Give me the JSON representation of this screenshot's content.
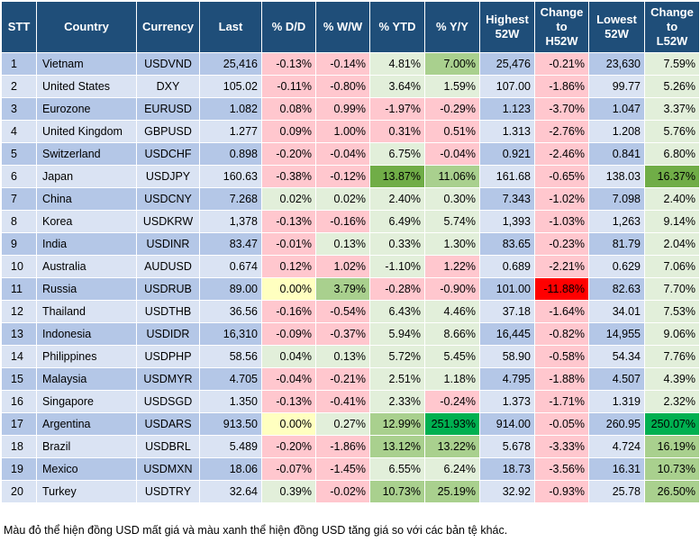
{
  "headers": {
    "stt": "STT",
    "country": "Country",
    "currency": "Currency",
    "last": "Last",
    "dd": "% D/D",
    "ww": "% W/W",
    "ytd": "% YTD",
    "yy": "% Y/Y",
    "high1": "Highest",
    "high2": "52W",
    "chh1": "Change",
    "chh2": "to",
    "chh3": "H52W",
    "low1": "Lowest",
    "low2": "52W",
    "chl1": "Change",
    "chl2": "to",
    "chl3": "L52W"
  },
  "rows": [
    {
      "stt": "1",
      "country": "Vietnam",
      "currency": "USDVND",
      "last": "25,416",
      "dd": "-0.13%",
      "ww": "-0.14%",
      "ytd": "4.81%",
      "yy": "7.00%",
      "high": "25,476",
      "chh": "-0.21%",
      "low": "23,630",
      "chl": "7.59%",
      "s": {
        "dd": "neg1",
        "ww": "neg1",
        "ytd": "pos1",
        "yy": "pos2",
        "chh": "neg1",
        "chl": "pos1"
      }
    },
    {
      "stt": "2",
      "country": "United States",
      "currency": "DXY",
      "last": "105.02",
      "dd": "-0.11%",
      "ww": "-0.80%",
      "ytd": "3.64%",
      "yy": "1.59%",
      "high": "107.00",
      "chh": "-1.86%",
      "low": "99.77",
      "chl": "5.26%",
      "s": {
        "dd": "neg1",
        "ww": "neg1",
        "ytd": "pos1",
        "yy": "pos1",
        "chh": "neg1",
        "chl": "pos1"
      }
    },
    {
      "stt": "3",
      "country": "Eurozone",
      "currency": "EURUSD",
      "last": "1.082",
      "dd": "0.08%",
      "ww": "0.99%",
      "ytd": "-1.97%",
      "yy": "-0.29%",
      "high": "1.123",
      "chh": "-3.70%",
      "low": "1.047",
      "chl": "3.37%",
      "s": {
        "dd": "neg1",
        "ww": "neg1",
        "ytd": "neg1",
        "yy": "neg1",
        "chh": "neg1",
        "chl": "pos1"
      }
    },
    {
      "stt": "4",
      "country": "United Kingdom",
      "currency": "GBPUSD",
      "last": "1.277",
      "dd": "0.09%",
      "ww": "1.00%",
      "ytd": "0.31%",
      "yy": "0.51%",
      "high": "1.313",
      "chh": "-2.76%",
      "low": "1.208",
      "chl": "5.76%",
      "s": {
        "dd": "neg1",
        "ww": "neg1",
        "ytd": "neg1",
        "yy": "neg1",
        "chh": "neg1",
        "chl": "pos1"
      }
    },
    {
      "stt": "5",
      "country": "Switzerland",
      "currency": "USDCHF",
      "last": "0.898",
      "dd": "-0.20%",
      "ww": "-0.04%",
      "ytd": "6.75%",
      "yy": "-0.04%",
      "high": "0.921",
      "chh": "-2.46%",
      "low": "0.841",
      "chl": "6.80%",
      "s": {
        "dd": "neg1",
        "ww": "neg1",
        "ytd": "pos1",
        "yy": "neg1",
        "chh": "neg1",
        "chl": "pos1"
      }
    },
    {
      "stt": "6",
      "country": "Japan",
      "currency": "USDJPY",
      "last": "160.63",
      "dd": "-0.38%",
      "ww": "-0.12%",
      "ytd": "13.87%",
      "yy": "11.06%",
      "high": "161.68",
      "chh": "-0.65%",
      "low": "138.03",
      "chl": "16.37%",
      "s": {
        "dd": "neg1",
        "ww": "neg1",
        "ytd": "pos3",
        "yy": "pos2",
        "chh": "neg1",
        "chl": "pos3"
      }
    },
    {
      "stt": "7",
      "country": "China",
      "currency": "USDCNY",
      "last": "7.268",
      "dd": "0.02%",
      "ww": "0.02%",
      "ytd": "2.40%",
      "yy": "0.30%",
      "high": "7.343",
      "chh": "-1.02%",
      "low": "7.098",
      "chl": "2.40%",
      "s": {
        "dd": "pos1",
        "ww": "pos1",
        "ytd": "pos1",
        "yy": "pos1",
        "chh": "neg1",
        "chl": "pos1"
      }
    },
    {
      "stt": "8",
      "country": "Korea",
      "currency": "USDKRW",
      "last": "1,378",
      "dd": "-0.13%",
      "ww": "-0.16%",
      "ytd": "6.49%",
      "yy": "5.74%",
      "high": "1,393",
      "chh": "-1.03%",
      "low": "1,263",
      "chl": "9.14%",
      "s": {
        "dd": "neg1",
        "ww": "neg1",
        "ytd": "pos1",
        "yy": "pos1",
        "chh": "neg1",
        "chl": "pos1"
      }
    },
    {
      "stt": "9",
      "country": "India",
      "currency": "USDINR",
      "last": "83.47",
      "dd": "-0.01%",
      "ww": "0.13%",
      "ytd": "0.33%",
      "yy": "1.30%",
      "high": "83.65",
      "chh": "-0.23%",
      "low": "81.79",
      "chl": "2.04%",
      "s": {
        "dd": "neg1",
        "ww": "pos1",
        "ytd": "pos1",
        "yy": "pos1",
        "chh": "neg1",
        "chl": "pos1"
      }
    },
    {
      "stt": "10",
      "country": "Australia",
      "currency": "AUDUSD",
      "last": "0.674",
      "dd": "0.12%",
      "ww": "1.02%",
      "ytd": "-1.10%",
      "yy": "1.22%",
      "high": "0.689",
      "chh": "-2.21%",
      "low": "0.629",
      "chl": "7.06%",
      "s": {
        "dd": "neg1",
        "ww": "neg1",
        "ytd": "pos1",
        "yy": "neg1",
        "chh": "neg1",
        "chl": "pos1"
      }
    },
    {
      "stt": "11",
      "country": "Russia",
      "currency": "USDRUB",
      "last": "89.00",
      "dd": "0.00%",
      "ww": "3.79%",
      "ytd": "-0.28%",
      "yy": "-0.90%",
      "high": "101.00",
      "chh": "-11.88%",
      "low": "82.63",
      "chl": "7.70%",
      "s": {
        "dd": "pos5",
        "ww": "pos2",
        "ytd": "neg1",
        "yy": "neg1",
        "chh": "neg3",
        "chl": "pos1"
      }
    },
    {
      "stt": "12",
      "country": "Thailand",
      "currency": "USDTHB",
      "last": "36.56",
      "dd": "-0.16%",
      "ww": "-0.54%",
      "ytd": "6.43%",
      "yy": "4.46%",
      "high": "37.18",
      "chh": "-1.64%",
      "low": "34.01",
      "chl": "7.53%",
      "s": {
        "dd": "neg1",
        "ww": "neg1",
        "ytd": "pos1",
        "yy": "pos1",
        "chh": "neg1",
        "chl": "pos1"
      }
    },
    {
      "stt": "13",
      "country": "Indonesia",
      "currency": "USDIDR",
      "last": "16,310",
      "dd": "-0.09%",
      "ww": "-0.37%",
      "ytd": "5.94%",
      "yy": "8.66%",
      "high": "16,445",
      "chh": "-0.82%",
      "low": "14,955",
      "chl": "9.06%",
      "s": {
        "dd": "neg1",
        "ww": "neg1",
        "ytd": "pos1",
        "yy": "pos1",
        "chh": "neg1",
        "chl": "pos1"
      }
    },
    {
      "stt": "14",
      "country": "Philippines",
      "currency": "USDPHP",
      "last": "58.56",
      "dd": "0.04%",
      "ww": "0.13%",
      "ytd": "5.72%",
      "yy": "5.45%",
      "high": "58.90",
      "chh": "-0.58%",
      "low": "54.34",
      "chl": "7.76%",
      "s": {
        "dd": "pos1",
        "ww": "pos1",
        "ytd": "pos1",
        "yy": "pos1",
        "chh": "neg1",
        "chl": "pos1"
      }
    },
    {
      "stt": "15",
      "country": "Malaysia",
      "currency": "USDMYR",
      "last": "4.705",
      "dd": "-0.04%",
      "ww": "-0.21%",
      "ytd": "2.51%",
      "yy": "1.18%",
      "high": "4.795",
      "chh": "-1.88%",
      "low": "4.507",
      "chl": "4.39%",
      "s": {
        "dd": "neg1",
        "ww": "neg1",
        "ytd": "pos1",
        "yy": "pos1",
        "chh": "neg1",
        "chl": "pos1"
      }
    },
    {
      "stt": "16",
      "country": "Singapore",
      "currency": "USDSGD",
      "last": "1.350",
      "dd": "-0.13%",
      "ww": "-0.41%",
      "ytd": "2.33%",
      "yy": "-0.24%",
      "high": "1.373",
      "chh": "-1.71%",
      "low": "1.319",
      "chl": "2.32%",
      "s": {
        "dd": "neg1",
        "ww": "neg1",
        "ytd": "pos1",
        "yy": "neg1",
        "chh": "neg1",
        "chl": "pos1"
      }
    },
    {
      "stt": "17",
      "country": "Argentina",
      "currency": "USDARS",
      "last": "913.50",
      "dd": "0.00%",
      "ww": "0.27%",
      "ytd": "12.99%",
      "yy": "251.93%",
      "high": "914.00",
      "chh": "-0.05%",
      "low": "260.95",
      "chl": "250.07%",
      "s": {
        "dd": "pos5",
        "ww": "pos1",
        "ytd": "pos2",
        "yy": "pos4",
        "chh": "neg1",
        "chl": "pos4"
      }
    },
    {
      "stt": "18",
      "country": "Brazil",
      "currency": "USDBRL",
      "last": "5.489",
      "dd": "-0.20%",
      "ww": "-1.86%",
      "ytd": "13.12%",
      "yy": "13.22%",
      "high": "5.678",
      "chh": "-3.33%",
      "low": "4.724",
      "chl": "16.19%",
      "s": {
        "dd": "neg1",
        "ww": "neg1",
        "ytd": "pos2",
        "yy": "pos2",
        "chh": "neg1",
        "chl": "pos2"
      }
    },
    {
      "stt": "19",
      "country": "Mexico",
      "currency": "USDMXN",
      "last": "18.06",
      "dd": "-0.07%",
      "ww": "-1.45%",
      "ytd": "6.55%",
      "yy": "6.24%",
      "high": "18.73",
      "chh": "-3.56%",
      "low": "16.31",
      "chl": "10.73%",
      "s": {
        "dd": "neg1",
        "ww": "neg1",
        "ytd": "pos1",
        "yy": "pos1",
        "chh": "neg1",
        "chl": "pos2"
      }
    },
    {
      "stt": "20",
      "country": "Turkey",
      "currency": "USDTRY",
      "last": "32.64",
      "dd": "0.39%",
      "ww": "-0.02%",
      "ytd": "10.73%",
      "yy": "25.19%",
      "high": "32.92",
      "chh": "-0.93%",
      "low": "25.78",
      "chl": "26.50%",
      "s": {
        "dd": "pos1",
        "ww": "neg1",
        "ytd": "pos2",
        "yy": "pos2",
        "chh": "neg1",
        "chl": "pos2"
      }
    }
  ],
  "note": "Màu đỏ thể hiện đồng USD mất giá và màu xanh thể hiện đồng USD tăng giá so với các bản tệ khác."
}
